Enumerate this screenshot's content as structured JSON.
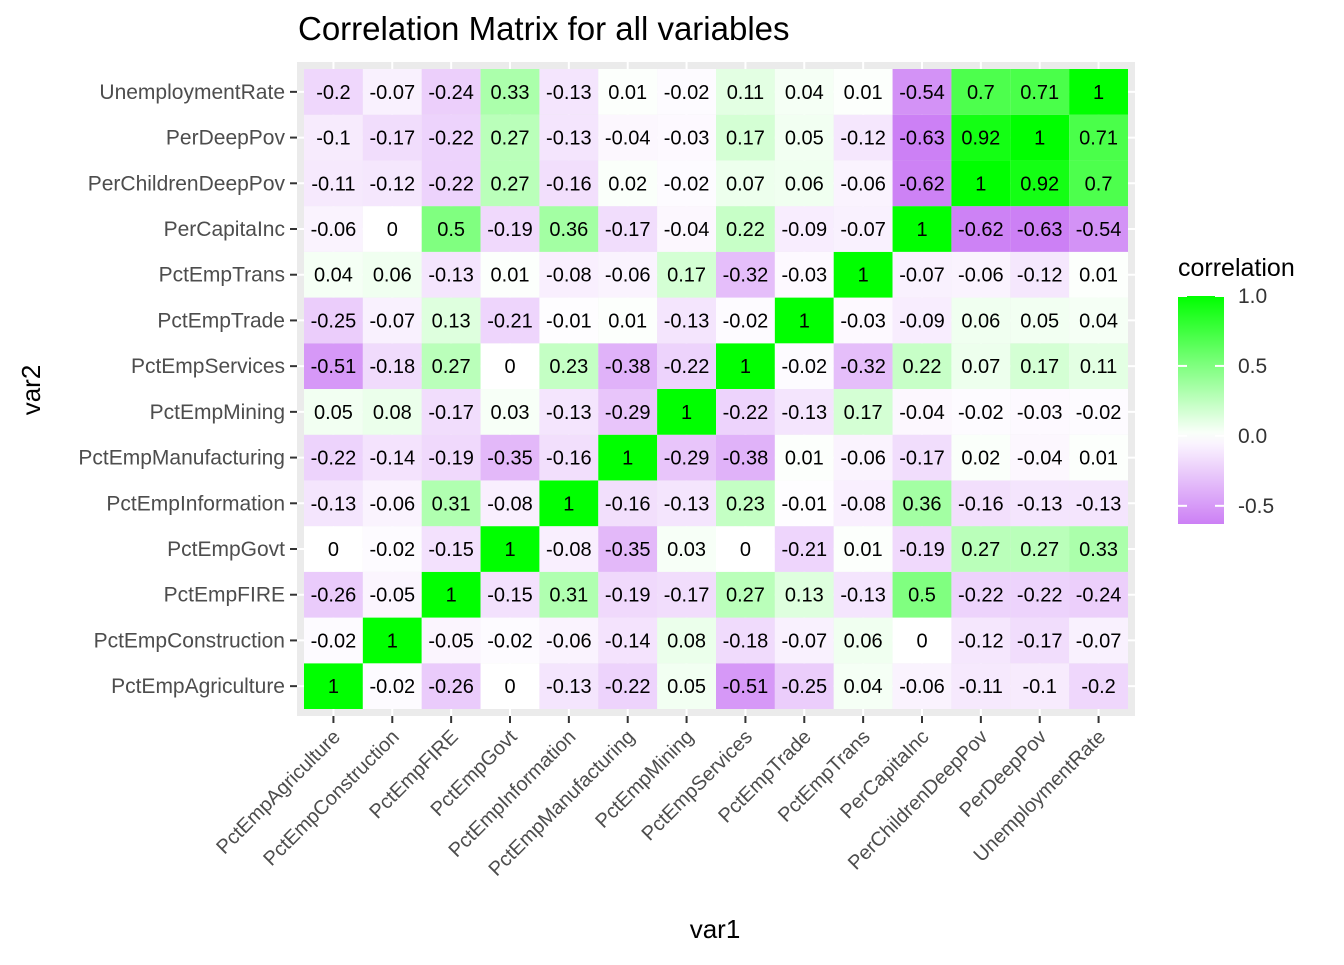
{
  "chart_data": {
    "type": "heatmap",
    "title": "Correlation Matrix for all variables",
    "xlabel": "var1",
    "ylabel": "var2",
    "x_categories": [
      "PctEmpAgriculture",
      "PctEmpConstruction",
      "PctEmpFIRE",
      "PctEmpGovt",
      "PctEmpInformation",
      "PctEmpManufacturing",
      "PctEmpMining",
      "PctEmpServices",
      "PctEmpTrade",
      "PctEmpTrans",
      "PerCapitaInc",
      "PerChildrenDeepPov",
      "PerDeepPov",
      "UnemploymentRate"
    ],
    "y_categories": [
      "PctEmpAgriculture",
      "PctEmpConstruction",
      "PctEmpFIRE",
      "PctEmpGovt",
      "PctEmpInformation",
      "PctEmpManufacturing",
      "PctEmpMining",
      "PctEmpServices",
      "PctEmpTrade",
      "PctEmpTrans",
      "PerCapitaInc",
      "PerChildrenDeepPov",
      "PerDeepPov",
      "UnemploymentRate"
    ],
    "values": [
      [
        1,
        -0.02,
        -0.26,
        0,
        -0.13,
        -0.22,
        0.05,
        -0.51,
        -0.25,
        0.04,
        -0.06,
        -0.11,
        -0.1,
        -0.2
      ],
      [
        -0.02,
        1,
        -0.05,
        -0.02,
        -0.06,
        -0.14,
        0.08,
        -0.18,
        -0.07,
        0.06,
        0,
        -0.12,
        -0.17,
        -0.07
      ],
      [
        -0.26,
        -0.05,
        1,
        -0.15,
        0.31,
        -0.19,
        -0.17,
        0.27,
        0.13,
        -0.13,
        0.5,
        -0.22,
        -0.22,
        -0.24
      ],
      [
        0,
        -0.02,
        -0.15,
        1,
        -0.08,
        -0.35,
        0.03,
        0,
        -0.21,
        0.01,
        -0.19,
        0.27,
        0.27,
        0.33
      ],
      [
        -0.13,
        -0.06,
        0.31,
        -0.08,
        1,
        -0.16,
        -0.13,
        0.23,
        -0.01,
        -0.08,
        0.36,
        -0.16,
        -0.13,
        -0.13
      ],
      [
        -0.22,
        -0.14,
        -0.19,
        -0.35,
        -0.16,
        1,
        -0.29,
        -0.38,
        0.01,
        -0.06,
        -0.17,
        0.02,
        -0.04,
        0.01
      ],
      [
        0.05,
        0.08,
        -0.17,
        0.03,
        -0.13,
        -0.29,
        1,
        -0.22,
        -0.13,
        0.17,
        -0.04,
        -0.02,
        -0.03,
        -0.02
      ],
      [
        -0.51,
        -0.18,
        0.27,
        0,
        0.23,
        -0.38,
        -0.22,
        1,
        -0.02,
        -0.32,
        0.22,
        0.07,
        0.17,
        0.11
      ],
      [
        -0.25,
        -0.07,
        0.13,
        -0.21,
        -0.01,
        0.01,
        -0.13,
        -0.02,
        1,
        -0.03,
        -0.09,
        0.06,
        0.05,
        0.04
      ],
      [
        0.04,
        0.06,
        -0.13,
        0.01,
        -0.08,
        -0.06,
        0.17,
        -0.32,
        -0.03,
        1,
        -0.07,
        -0.06,
        -0.12,
        0.01
      ],
      [
        -0.06,
        0,
        0.5,
        -0.19,
        0.36,
        -0.17,
        -0.04,
        0.22,
        -0.09,
        -0.07,
        1,
        -0.62,
        -0.63,
        -0.54
      ],
      [
        -0.11,
        -0.12,
        -0.22,
        0.27,
        -0.16,
        0.02,
        -0.02,
        0.07,
        0.06,
        -0.06,
        -0.62,
        1,
        0.92,
        0.7
      ],
      [
        -0.1,
        -0.17,
        -0.22,
        0.27,
        -0.13,
        -0.04,
        -0.03,
        0.17,
        0.05,
        -0.12,
        -0.63,
        0.92,
        1,
        0.71
      ],
      [
        -0.2,
        -0.07,
        -0.24,
        0.33,
        -0.13,
        0.01,
        -0.02,
        0.11,
        0.04,
        0.01,
        -0.54,
        0.7,
        0.71,
        1
      ]
    ],
    "legend": {
      "title": "correlation",
      "ticks": [
        "1.0",
        "0.5",
        "0.0",
        "-0.5"
      ],
      "tick_values": [
        1.0,
        0.5,
        0.0,
        -0.5
      ],
      "range": [
        -0.63,
        1.0
      ],
      "placement": "right"
    },
    "colors": {
      "low": "#cc80f5",
      "mid": "#ffffff",
      "high": "#00ff00",
      "panel_background": "#ebebeb",
      "grid": "#ffffff"
    }
  }
}
